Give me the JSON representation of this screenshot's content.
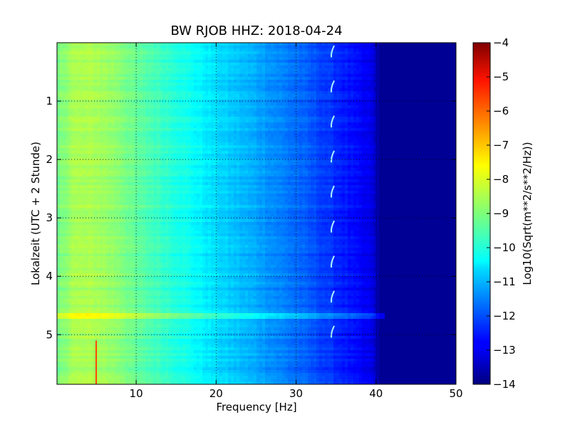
{
  "chart_data": {
    "type": "heatmap",
    "title": "BW RJOB HHZ: 2018-04-24",
    "xlabel": "Frequency [Hz]",
    "ylabel": "Lokalzeit (UTC + 2 Stunde)",
    "xlim": [
      0.1,
      50
    ],
    "ylim": [
      5.85,
      0
    ],
    "y_inverted": true,
    "xticks": [
      10,
      20,
      30,
      40,
      50
    ],
    "yticks": [
      1,
      2,
      3,
      4,
      5
    ],
    "grid": true,
    "colormap": "jet",
    "colorbar": {
      "label": "Log10(Sqrt(m**2/s**2/Hz))",
      "range": [
        -14,
        -4
      ],
      "ticks": [
        -4,
        -5,
        -6,
        -7,
        -8,
        -9,
        -10,
        -11,
        -12,
        -13,
        -14
      ]
    },
    "profile": {
      "frequency": [
        0,
        2,
        5,
        8,
        10,
        15,
        20,
        25,
        30,
        33,
        36,
        38,
        39.5,
        40.5,
        50
      ],
      "log10_psd": [
        -9.2,
        -8.6,
        -8.6,
        -8.9,
        -9.3,
        -9.9,
        -10.6,
        -11.1,
        -11.7,
        -12.1,
        -12.5,
        -12.8,
        -13.0,
        -13.8,
        -13.8
      ]
    },
    "features": {
      "broadband_event_time": 4.68,
      "broadband_event_max_freq": 41,
      "spike_frequency": 5,
      "spike_time_range": [
        5.1,
        5.85
      ],
      "tonal_line_frequency": 34.5
    }
  }
}
